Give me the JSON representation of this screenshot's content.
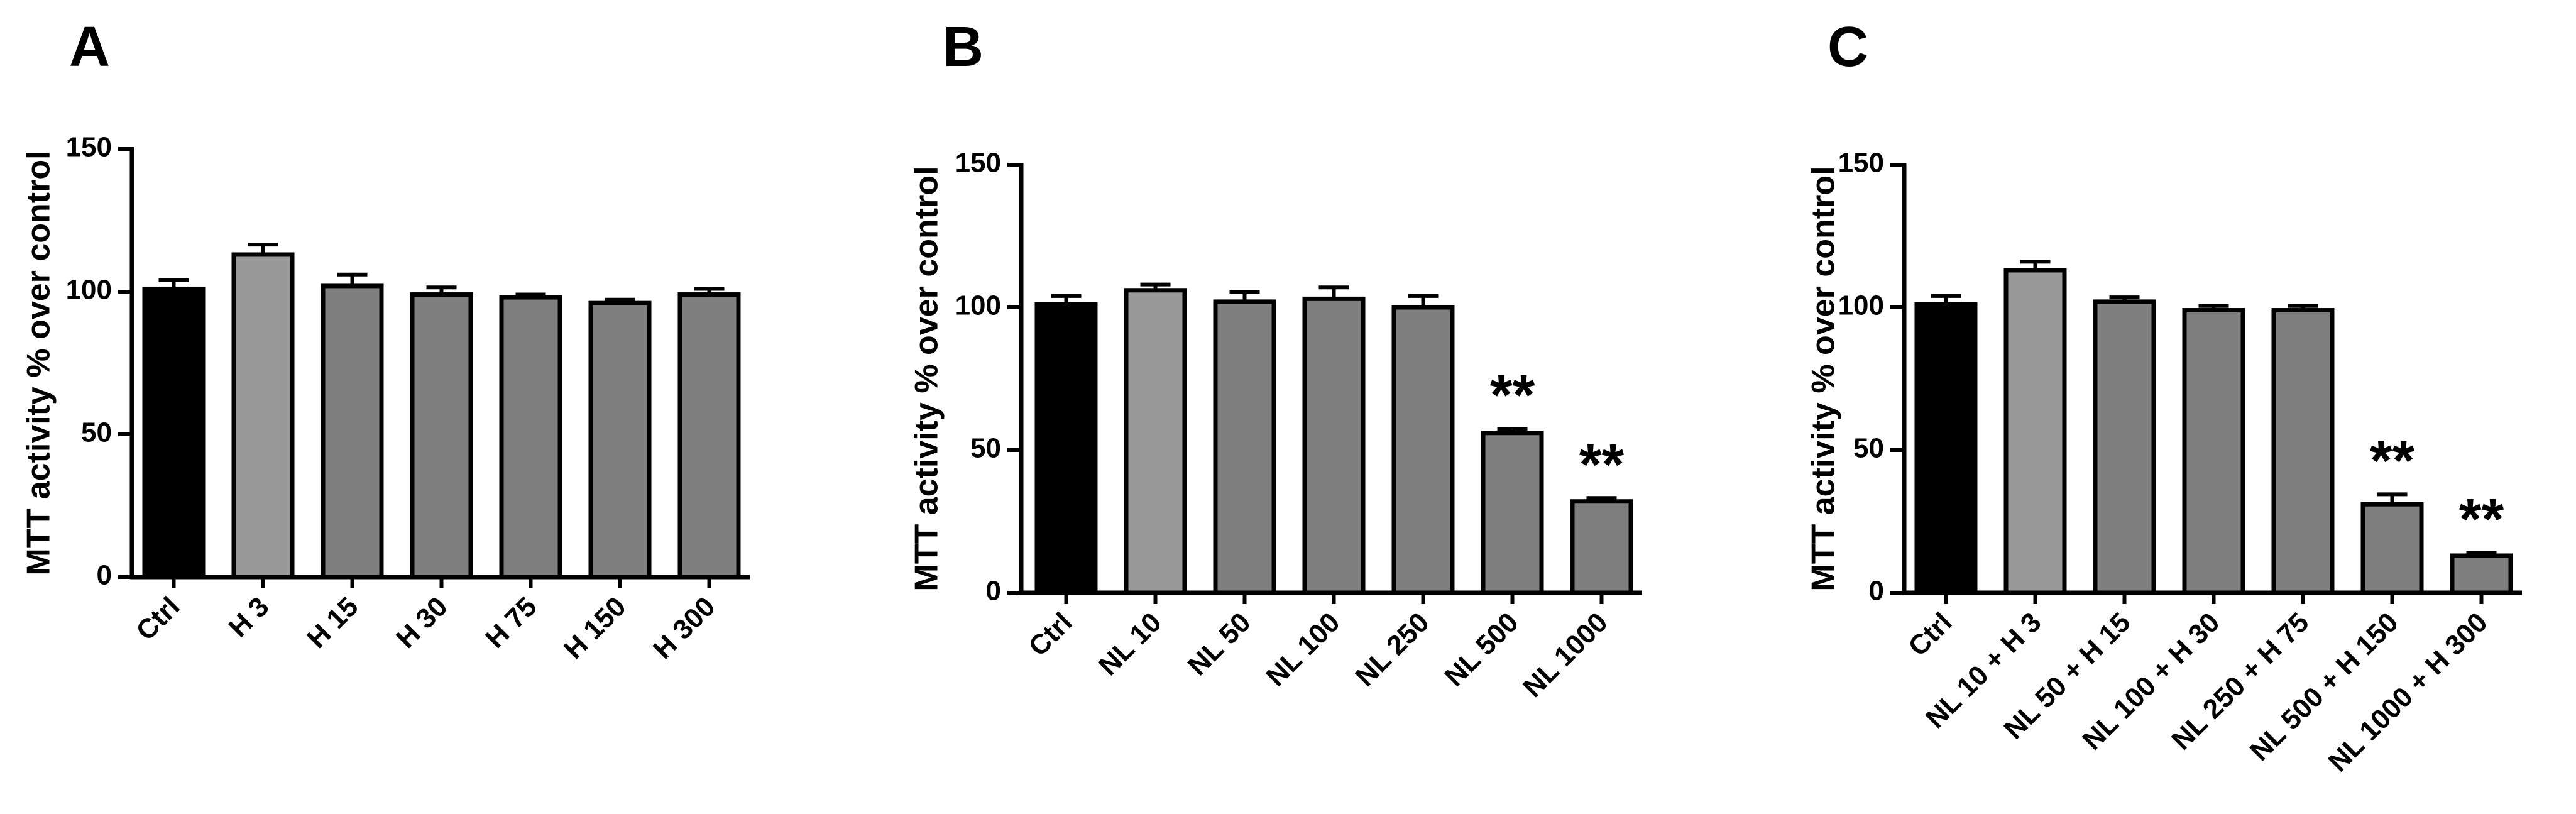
{
  "chart_data": [
    {
      "panel": "A",
      "type": "bar",
      "ylabel": "MTT activity % over control",
      "ylim": [
        0,
        150
      ],
      "yticks": [
        0,
        50,
        100,
        150
      ],
      "categories": [
        "Ctrl",
        "H 3",
        "H 15",
        "H 30",
        "H 75",
        "H 150",
        "H 300"
      ],
      "values": [
        101,
        113,
        102,
        99,
        98,
        96,
        99
      ],
      "errors": [
        3,
        3.5,
        4,
        2.5,
        1,
        1.2,
        2
      ],
      "colors": [
        "#000000",
        "#999999",
        "#7f7f7f",
        "#7f7f7f",
        "#7f7f7f",
        "#7f7f7f",
        "#7f7f7f"
      ],
      "annotations": [
        "",
        "",
        "",
        "",
        "",
        "",
        ""
      ]
    },
    {
      "panel": "B",
      "type": "bar",
      "ylabel": "MTT activity % over control",
      "ylim": [
        0,
        150
      ],
      "yticks": [
        0,
        50,
        100,
        150
      ],
      "categories": [
        "Ctrl",
        "NL 10",
        "NL 50",
        "NL 100",
        "NL 250",
        "NL 500",
        "NL 1000"
      ],
      "values": [
        101,
        106,
        102,
        103,
        100,
        56,
        32
      ],
      "errors": [
        3,
        2,
        3.5,
        4,
        4,
        1.5,
        1.2
      ],
      "colors": [
        "#000000",
        "#999999",
        "#7f7f7f",
        "#7f7f7f",
        "#7f7f7f",
        "#7f7f7f",
        "#7f7f7f"
      ],
      "annotations": [
        "",
        "",
        "",
        "",
        "",
        "**",
        "**"
      ]
    },
    {
      "panel": "C",
      "type": "bar",
      "ylabel": "MTT activity % over control",
      "ylim": [
        0,
        150
      ],
      "yticks": [
        0,
        50,
        100,
        150
      ],
      "categories": [
        "Ctrl",
        "NL 10 + H 3",
        "NL 50 + H 15",
        "NL 100 + H 30",
        "NL 250 + H 75",
        "NL 500 + H 150",
        "NL 1000 + H 300"
      ],
      "values": [
        101,
        113,
        102,
        99,
        99,
        31,
        13
      ],
      "errors": [
        3,
        3,
        1.5,
        1.5,
        1.5,
        3.5,
        1
      ],
      "colors": [
        "#000000",
        "#999999",
        "#7f7f7f",
        "#7f7f7f",
        "#7f7f7f",
        "#7f7f7f",
        "#7f7f7f"
      ],
      "annotations": [
        "",
        "",
        "",
        "",
        "",
        "**",
        "**"
      ]
    }
  ]
}
